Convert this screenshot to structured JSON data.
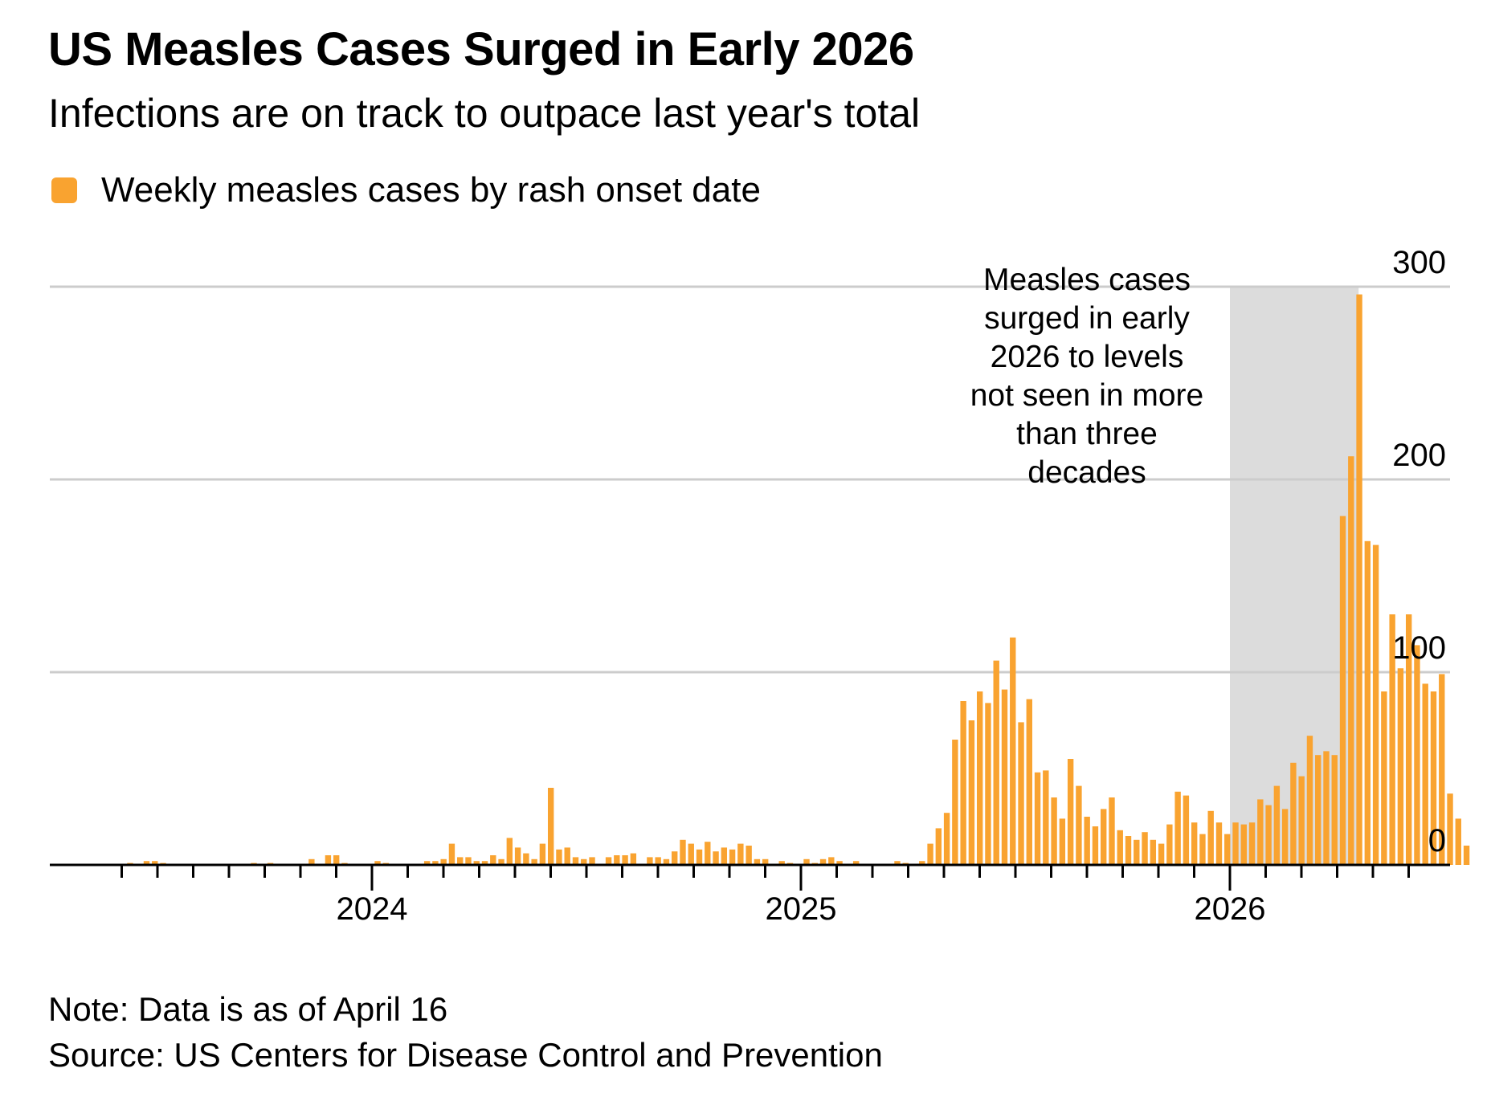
{
  "colors": {
    "bar": "#f9a330",
    "grid": "#cccccc",
    "axis": "#000000",
    "highlight": "#dcdcdc"
  },
  "chart_data": {
    "type": "bar",
    "title": "US Measles Cases Surged in Early 2026",
    "subtitle": "Infections are on track to outpace last year's total",
    "legend": [
      "Weekly measles cases by rash onset date"
    ],
    "legend_position": "top-left",
    "ylabel": "",
    "xlabel": "",
    "ylim": [
      0,
      300
    ],
    "yticks": [
      "0",
      "100",
      "200",
      "300"
    ],
    "y_axis_side": "right",
    "grid": true,
    "x_start_year": 2023.417,
    "weeks_per_year": 52,
    "xticks": [
      "2024",
      "2025",
      "2026"
    ],
    "xtick_years": [
      2024,
      2025,
      2026
    ],
    "annotation": {
      "text": "Measles cases surged in early 2026 to levels not seen in more than three decades",
      "lines": [
        "Measles cases",
        "surged in early",
        "2026 to levels",
        "not seen in more",
        "than three",
        "decades"
      ],
      "highlight_start_year": 2026,
      "highlight_end_year": 2026.3
    },
    "series": [
      {
        "name": "Weekly measles cases by rash onset date",
        "values": [
          0,
          1,
          0,
          2,
          2,
          1,
          0,
          0,
          0,
          0,
          0,
          0,
          0,
          0,
          0,
          0,
          1,
          0,
          1,
          0,
          0,
          0,
          0,
          3,
          0,
          5,
          5,
          1,
          0,
          0,
          0,
          2,
          1,
          0,
          0,
          0,
          0,
          2,
          2,
          3,
          11,
          4,
          4,
          2,
          2,
          5,
          3,
          14,
          9,
          6,
          3,
          11,
          40,
          8,
          9,
          4,
          3,
          4,
          0,
          4,
          5,
          5,
          6,
          0,
          4,
          4,
          3,
          7,
          13,
          11,
          8,
          12,
          7,
          9,
          8,
          11,
          10,
          3,
          3,
          0,
          2,
          1,
          0,
          3,
          1,
          3,
          4,
          2,
          0,
          2,
          0,
          0,
          0,
          0,
          2,
          1,
          0,
          2,
          11,
          19,
          27,
          65,
          85,
          75,
          90,
          84,
          106,
          91,
          118,
          74,
          86,
          48,
          49,
          35,
          24,
          55,
          41,
          25,
          20,
          29,
          35,
          18,
          15,
          13,
          17,
          13,
          11,
          21,
          38,
          36,
          22,
          16,
          28,
          22,
          16,
          22,
          21,
          22,
          34,
          31,
          41,
          29,
          53,
          46,
          67,
          57,
          59,
          57,
          181,
          212,
          296,
          168,
          166,
          90,
          130,
          102,
          130,
          114,
          94,
          90,
          99,
          37,
          24,
          10
        ]
      }
    ]
  },
  "footer": {
    "note": "Note: Data is as of April 16",
    "source": "Source: US Centers for Disease Control and Prevention"
  }
}
